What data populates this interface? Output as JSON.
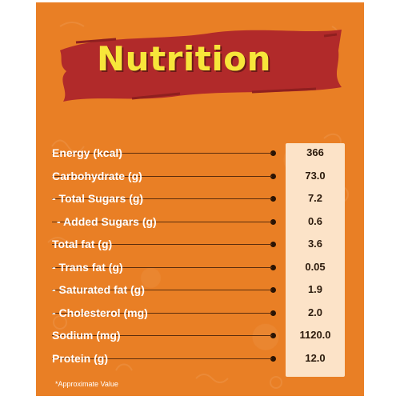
{
  "title": "Nutrition",
  "rows": [
    {
      "label": "Energy (kcal)",
      "value": "366"
    },
    {
      "label": "Carbohydrate (g)",
      "value": "73.0"
    },
    {
      "label": "- Total Sugars (g)",
      "value": "7.2"
    },
    {
      "label": "- Added Sugars (g)",
      "value": "0.6"
    },
    {
      "label": "Total fat (g)",
      "value": "3.6"
    },
    {
      "label": "- Trans fat (g)",
      "value": "0.05"
    },
    {
      "label": "- Saturated fat (g)",
      "value": "1.9"
    },
    {
      "label": "- Cholesterol (mg)",
      "value": "2.0"
    },
    {
      "label": "Sodium (mg)",
      "value": "1120.0"
    },
    {
      "label": "Protein (g)",
      "value": "12.0"
    }
  ],
  "footnote": "*Approximate Value",
  "colors": {
    "background": "#e97f25",
    "banner": "#b12a2a",
    "title_text": "#f7e63a",
    "value_box": "#fce3c8"
  }
}
